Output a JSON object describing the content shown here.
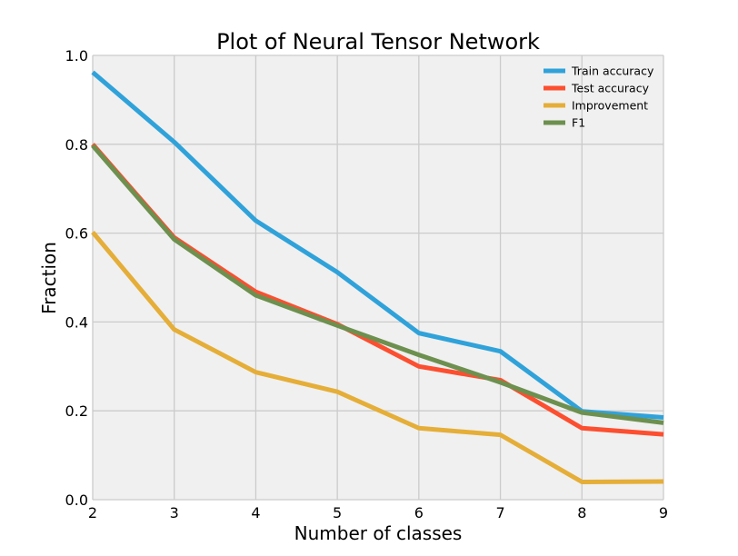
{
  "chart_data": {
    "type": "line",
    "title": "Plot of Neural Tensor Network",
    "xlabel": "Number of classes",
    "ylabel": "Fraction",
    "x": [
      2,
      3,
      4,
      5,
      6,
      7,
      8,
      9
    ],
    "xlim": [
      2,
      9
    ],
    "ylim": [
      0,
      1
    ],
    "xticks": [
      "2",
      "3",
      "4",
      "5",
      "6",
      "7",
      "8",
      "9"
    ],
    "yticks": [
      "0.0",
      "0.2",
      "0.4",
      "0.6",
      "0.8",
      "1.0"
    ],
    "grid": true,
    "legend_position": "top-right",
    "series": [
      {
        "name": "Train accuracy",
        "color": "#30a2da",
        "values": [
          0.962,
          0.805,
          0.628,
          0.512,
          0.375,
          0.334,
          0.199,
          0.185
        ]
      },
      {
        "name": "Test accuracy",
        "color": "#fc4f30",
        "values": [
          0.8,
          0.59,
          0.468,
          0.395,
          0.3,
          0.269,
          0.161,
          0.147
        ]
      },
      {
        "name": "Improvement",
        "color": "#e5ae38",
        "values": [
          0.602,
          0.383,
          0.287,
          0.243,
          0.161,
          0.146,
          0.04,
          0.041
        ]
      },
      {
        "name": "F1",
        "color": "#6d904f",
        "values": [
          0.797,
          0.586,
          0.46,
          0.392,
          0.326,
          0.264,
          0.196,
          0.173
        ]
      }
    ]
  }
}
